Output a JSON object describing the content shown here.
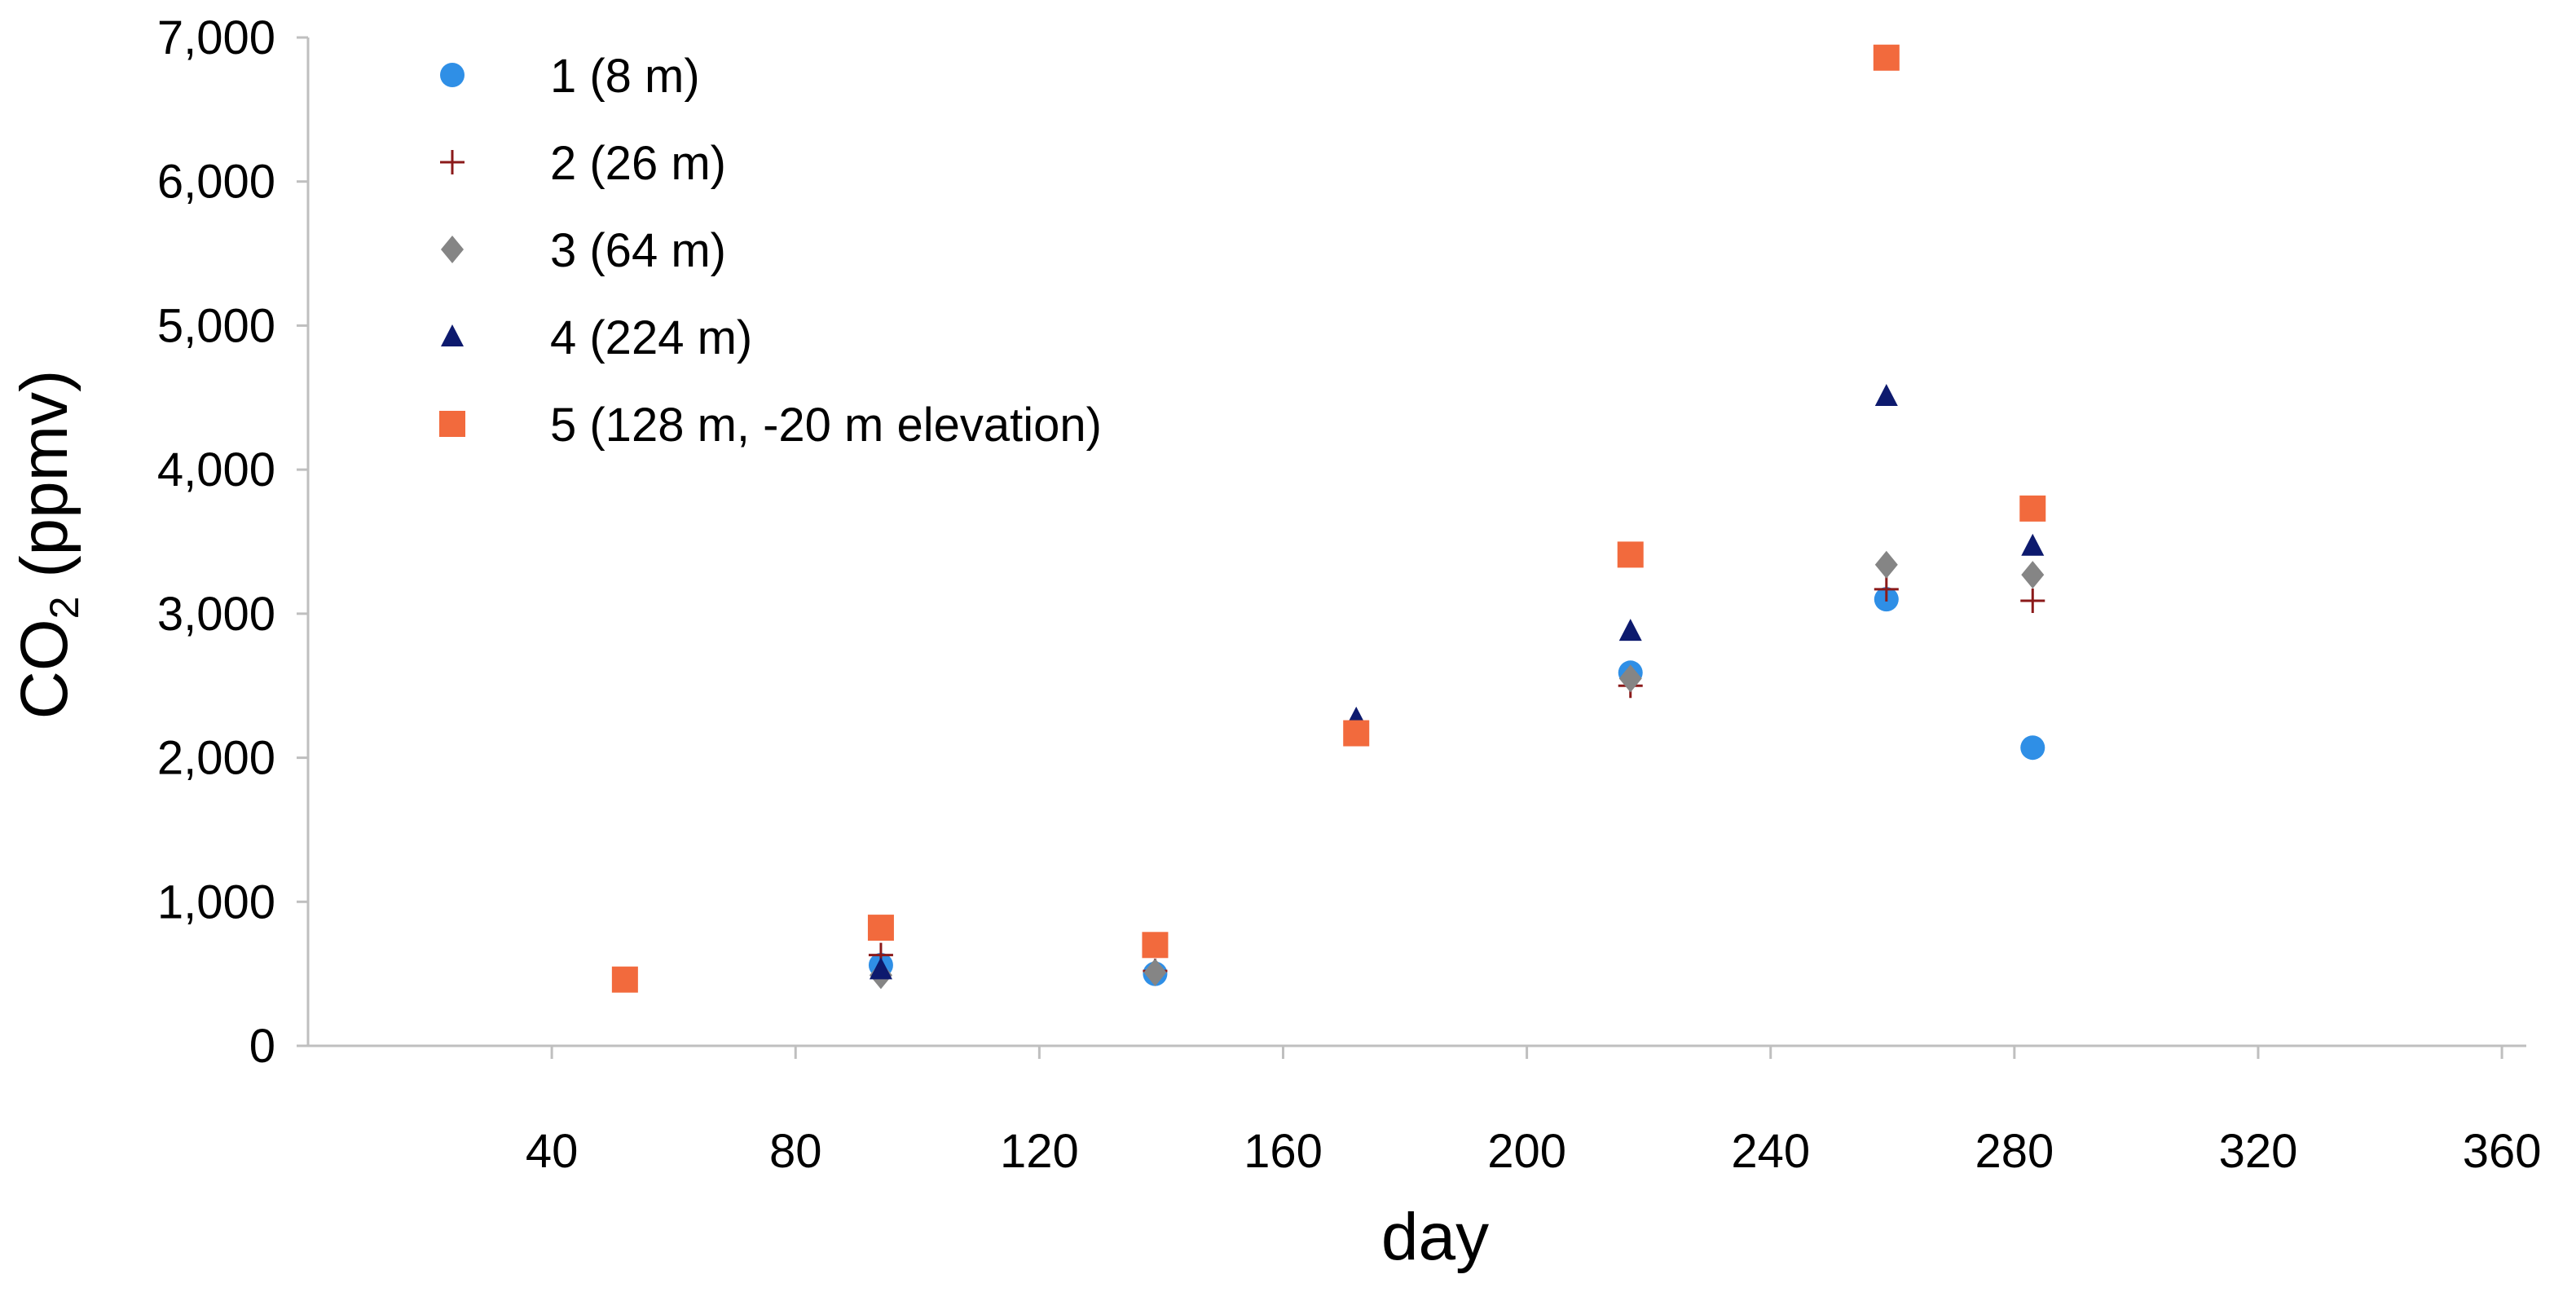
{
  "chart_data": {
    "type": "scatter",
    "title": "",
    "xlabel": "day",
    "ylabel": "CO2 (ppmv)",
    "ylabel_parts": {
      "main": "CO",
      "sub": "2",
      "rest": " (ppmv)"
    },
    "xlim": [
      0,
      364
    ],
    "ylim": [
      0,
      7000
    ],
    "x_ticks": [
      40,
      80,
      120,
      160,
      200,
      240,
      280,
      320,
      360
    ],
    "x_tick_labels": [
      "40",
      "80",
      "120",
      "160",
      "200",
      "240",
      "280",
      "320",
      "360"
    ],
    "y_ticks": [
      0,
      1000,
      2000,
      3000,
      4000,
      5000,
      6000,
      7000
    ],
    "y_tick_labels": [
      "0",
      "1,000",
      "2,000",
      "3,000",
      "4,000",
      "5,000",
      "6,000",
      "7,000"
    ],
    "grid": false,
    "legend_position": "top-left",
    "series": [
      {
        "name": "1 (8 m)",
        "marker": "circle",
        "color": "#2F8FE6",
        "points": [
          [
            94,
            560
          ],
          [
            139,
            500
          ],
          [
            217,
            2590
          ],
          [
            259,
            3100
          ],
          [
            283,
            2070
          ]
        ]
      },
      {
        "name": "2 (26 m)",
        "marker": "plus",
        "color": "#8B1A1A",
        "points": [
          [
            94,
            630
          ],
          [
            139,
            520
          ],
          [
            217,
            2500
          ],
          [
            259,
            3170
          ],
          [
            283,
            3090
          ]
        ]
      },
      {
        "name": "3 (64 m)",
        "marker": "diamond",
        "color": "#858585",
        "points": [
          [
            94,
            490
          ],
          [
            139,
            510
          ],
          [
            217,
            2550
          ],
          [
            259,
            3340
          ],
          [
            283,
            3270
          ]
        ]
      },
      {
        "name": "4 (224 m)",
        "marker": "triangle",
        "color": "#0D1A6E",
        "points": [
          [
            94,
            530
          ],
          [
            172,
            2270
          ],
          [
            217,
            2880
          ],
          [
            259,
            4510
          ],
          [
            283,
            3470
          ]
        ]
      },
      {
        "name": "5 (128 m, -20 m elevation)",
        "marker": "square",
        "color": "#F26A3D",
        "points": [
          [
            52,
            460
          ],
          [
            94,
            820
          ],
          [
            139,
            700
          ],
          [
            172,
            2170
          ],
          [
            217,
            3410
          ],
          [
            259,
            6860
          ],
          [
            283,
            3730
          ]
        ]
      }
    ]
  }
}
